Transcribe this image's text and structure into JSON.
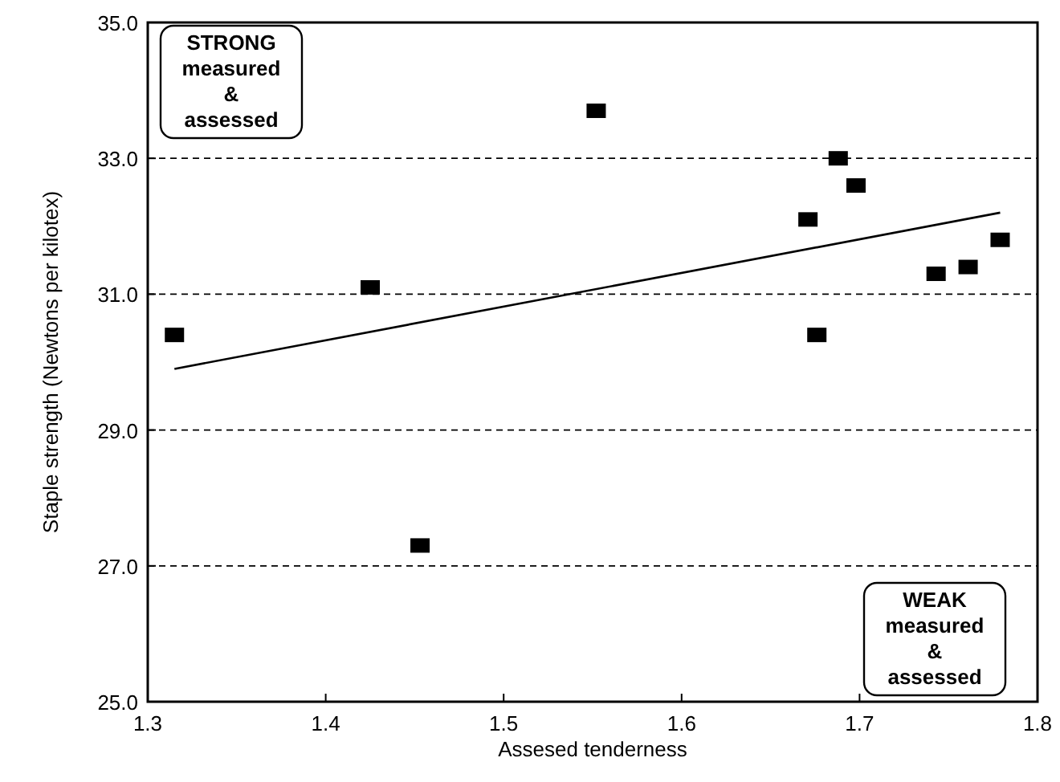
{
  "chart_data": {
    "type": "scatter",
    "xlabel": "Assesed tenderness",
    "ylabel": "Staple strength (Newtons per kilotex)",
    "grid": "y",
    "xlim": [
      1.3,
      1.8
    ],
    "xticks": [
      1.3,
      1.4,
      1.5,
      1.6,
      1.7,
      1.8
    ],
    "ylim": [
      25,
      35
    ],
    "yticks": [
      {
        "value": 25,
        "label": "25.0"
      },
      {
        "value": 27,
        "label": "27.0"
      },
      {
        "value": 29,
        "label": "29.0"
      },
      {
        "value": 31,
        "label": "31.0"
      },
      {
        "value": 33,
        "label": "33.0"
      },
      {
        "value": 35,
        "label": "35.0"
      }
    ],
    "series": [
      {
        "marker": "square",
        "color": "#000000",
        "x": [
          1.315,
          1.425,
          1.453,
          1.552,
          1.671,
          1.676,
          1.688,
          1.698,
          1.743,
          1.761,
          1.779
        ],
        "values": [
          30.4,
          31.1,
          27.3,
          33.7,
          32.1,
          30.4,
          33.0,
          32.6,
          31.3,
          31.4,
          31.8
        ]
      },
      {
        "type": "line",
        "color": "#000000",
        "x": [
          1.315,
          1.779
        ],
        "values": [
          29.9,
          32.2
        ]
      }
    ],
    "annotations": [
      "STRONG\nmeasured\n&\nassessed",
      "WEAK\nmeasured\n&\nassessed"
    ]
  }
}
